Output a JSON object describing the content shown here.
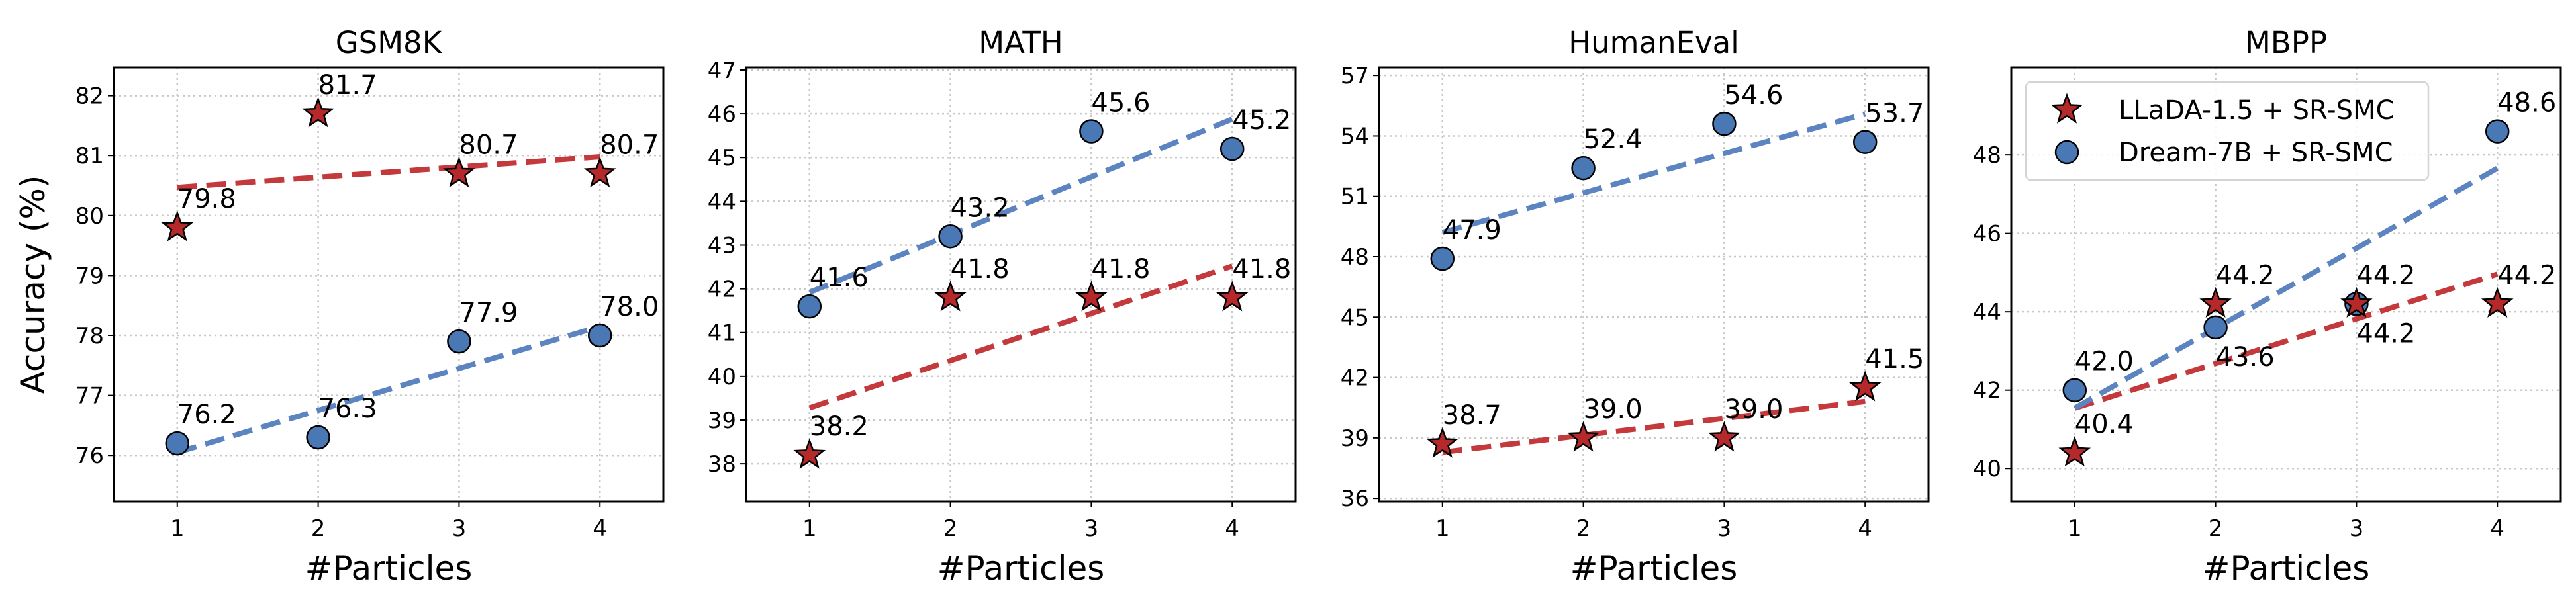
{
  "colors": {
    "llada_marker": "#b5292b",
    "llada_line": "#c4393c",
    "dream_marker": "#4a78b5",
    "dream_line": "#5b84c0",
    "grid": "#c8c8c8",
    "legend_border": "#d4d4d4"
  },
  "shared": {
    "ylabel": "Accuracy (%)",
    "xlabel": "#Particles"
  },
  "chart_data": [
    {
      "type": "scatter",
      "title": "GSM8K",
      "xlabel": "#Particles",
      "ylabel": "Accuracy (%)",
      "x": [
        1,
        2,
        3,
        4
      ],
      "xlim": [
        0.55,
        4.45
      ],
      "ylim": [
        75.23,
        82.47
      ],
      "yticks": [
        76,
        77,
        78,
        79,
        80,
        81,
        82
      ],
      "grid": true,
      "trendline": "linear fit, dashed",
      "series": [
        {
          "name": "LLaDA-1.5 + SR-SMC",
          "marker": "star",
          "values": [
            79.8,
            81.7,
            80.7,
            80.7
          ],
          "labels": [
            "79.8",
            "81.7",
            "80.7",
            "80.7"
          ]
        },
        {
          "name": "Dream-7B + SR-SMC",
          "marker": "circle",
          "values": [
            76.2,
            76.3,
            77.9,
            78.0
          ],
          "labels": [
            "76.2",
            "76.3",
            "77.9",
            "78.0"
          ]
        }
      ]
    },
    {
      "type": "scatter",
      "title": "MATH",
      "xlabel": "#Particles",
      "ylabel": "",
      "x": [
        1,
        2,
        3,
        4
      ],
      "xlim": [
        0.55,
        4.45
      ],
      "ylim": [
        37.14,
        47.06
      ],
      "yticks": [
        38,
        39,
        40,
        41,
        42,
        43,
        44,
        45,
        46,
        47
      ],
      "grid": true,
      "trendline": "linear fit, dashed",
      "series": [
        {
          "name": "LLaDA-1.5 + SR-SMC",
          "marker": "star",
          "values": [
            38.2,
            41.8,
            41.8,
            41.8
          ],
          "labels": [
            "38.2",
            "41.8",
            "41.8",
            "41.8"
          ]
        },
        {
          "name": "Dream-7B + SR-SMC",
          "marker": "circle",
          "values": [
            41.6,
            43.2,
            45.6,
            45.2
          ],
          "labels": [
            "41.6",
            "43.2",
            "45.6",
            "45.2"
          ]
        }
      ]
    },
    {
      "type": "scatter",
      "title": "HumanEval",
      "xlabel": "#Particles",
      "ylabel": "",
      "x": [
        1,
        2,
        3,
        4
      ],
      "xlim": [
        0.55,
        4.45
      ],
      "ylim": [
        35.84,
        57.4
      ],
      "yticks": [
        36,
        39,
        42,
        45,
        48,
        51,
        54,
        57
      ],
      "grid": true,
      "trendline": "linear fit, dashed",
      "series": [
        {
          "name": "LLaDA-1.5 + SR-SMC",
          "marker": "star",
          "values": [
            38.7,
            39.0,
            39.0,
            41.5
          ],
          "labels": [
            "38.7",
            "39.0",
            "39.0",
            "41.5"
          ]
        },
        {
          "name": "Dream-7B + SR-SMC",
          "marker": "circle",
          "values": [
            47.9,
            52.4,
            54.6,
            53.7
          ],
          "labels": [
            "47.9",
            "52.4",
            "54.6",
            "53.7"
          ]
        }
      ]
    },
    {
      "type": "scatter",
      "title": "MBPP",
      "xlabel": "#Particles",
      "ylabel": "",
      "x": [
        1,
        2,
        3,
        4
      ],
      "xlim": [
        0.55,
        4.45
      ],
      "ylim": [
        39.16,
        50.23
      ],
      "yticks": [
        40,
        42,
        44,
        46,
        48
      ],
      "grid": true,
      "trendline": "linear fit, dashed",
      "legend": {
        "placement": "top-left",
        "entries": [
          "LLaDA-1.5 + SR-SMC",
          "Dream-7B + SR-SMC"
        ]
      },
      "series": [
        {
          "name": "LLaDA-1.5 + SR-SMC",
          "marker": "star",
          "values": [
            40.4,
            44.2,
            44.2,
            44.2
          ],
          "labels": [
            "40.4",
            "44.2",
            "44.2",
            "44.2"
          ]
        },
        {
          "name": "Dream-7B + SR-SMC",
          "marker": "circle",
          "values": [
            42.0,
            43.6,
            44.2,
            48.6
          ],
          "labels": [
            "42.0",
            "43.6",
            "44.2",
            "48.6"
          ]
        }
      ]
    }
  ]
}
